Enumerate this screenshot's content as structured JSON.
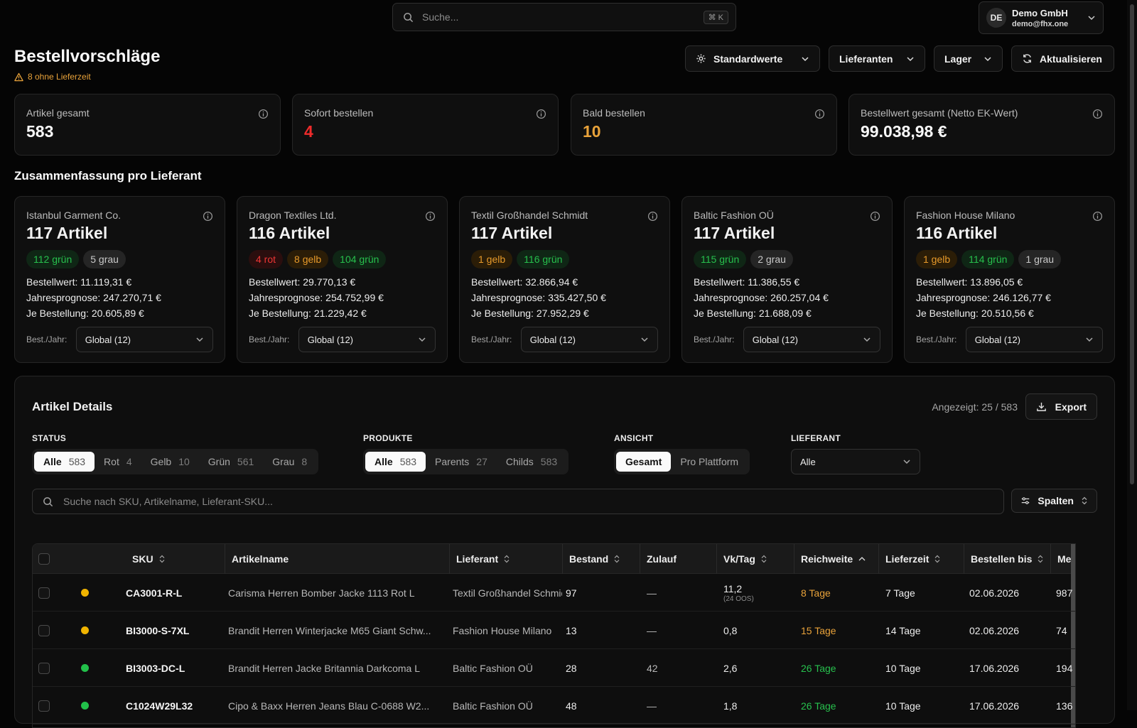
{
  "topbar": {
    "search_placeholder": "Suche...",
    "shortcut": "⌘ K",
    "user_initials": "DE",
    "user_name": "Demo GmbH",
    "user_email": "demo@fhx.one"
  },
  "page": {
    "title": "Bestellvorschläge",
    "warning": "8 ohne Lieferzeit"
  },
  "toolbar": {
    "defaults": "Standardwerte",
    "suppliers": "Lieferanten",
    "warehouse": "Lager",
    "refresh": "Aktualisieren"
  },
  "kpis": [
    {
      "label": "Artikel gesamt",
      "value": "583",
      "color": "#fafafa"
    },
    {
      "label": "Sofort bestellen",
      "value": "4",
      "color": "#ee2b2b"
    },
    {
      "label": "Bald bestellen",
      "value": "10",
      "color": "#e8a23a"
    },
    {
      "label": "Bestellwert gesamt (Netto EK-Wert)",
      "value": "99.038,98 €",
      "color": "#fafafa"
    }
  ],
  "summary_title": "Zusammenfassung pro Lieferant",
  "suppliers": [
    {
      "name": "Istanbul Garment Co.",
      "count": "117 Artikel",
      "pills": [
        {
          "t": "112 grün",
          "c": "gr"
        },
        {
          "t": "5 grau",
          "c": "gy"
        }
      ],
      "order_value": "Bestellwert: 11.119,31 €",
      "forecast": "Jahresprognose: 247.270,71 €",
      "per_order": "Je Bestellung: 20.605,89 €",
      "sel_label": "Best./Jahr:",
      "sel_value": "Global (12)"
    },
    {
      "name": "Dragon Textiles Ltd.",
      "count": "116 Artikel",
      "pills": [
        {
          "t": "4 rot",
          "c": "ro"
        },
        {
          "t": "8 gelb",
          "c": "ge"
        },
        {
          "t": "104 grün",
          "c": "gr"
        }
      ],
      "order_value": "Bestellwert: 29.770,13 €",
      "forecast": "Jahresprognose: 254.752,99 €",
      "per_order": "Je Bestellung: 21.229,42 €",
      "sel_label": "Best./Jahr:",
      "sel_value": "Global (12)"
    },
    {
      "name": "Textil Großhandel Schmidt",
      "count": "117 Artikel",
      "pills": [
        {
          "t": "1 gelb",
          "c": "ge"
        },
        {
          "t": "116 grün",
          "c": "gr"
        }
      ],
      "order_value": "Bestellwert: 32.866,94 €",
      "forecast": "Jahresprognose: 335.427,50 €",
      "per_order": "Je Bestellung: 27.952,29 €",
      "sel_label": "Best./Jahr:",
      "sel_value": "Global (12)"
    },
    {
      "name": "Baltic Fashion OÜ",
      "count": "117 Artikel",
      "pills": [
        {
          "t": "115 grün",
          "c": "gr"
        },
        {
          "t": "2 grau",
          "c": "gy"
        }
      ],
      "order_value": "Bestellwert: 11.386,55 €",
      "forecast": "Jahresprognose: 260.257,04 €",
      "per_order": "Je Bestellung: 21.688,09 €",
      "sel_label": "Best./Jahr:",
      "sel_value": "Global (12)"
    },
    {
      "name": "Fashion House Milano",
      "count": "116 Artikel",
      "pills": [
        {
          "t": "1 gelb",
          "c": "ge"
        },
        {
          "t": "114 grün",
          "c": "gr"
        },
        {
          "t": "1 grau",
          "c": "gy"
        }
      ],
      "order_value": "Bestellwert: 13.896,05 €",
      "forecast": "Jahresprognose: 246.126,77 €",
      "per_order": "Je Bestellung: 20.510,56 €",
      "sel_label": "Best./Jahr:",
      "sel_value": "Global (12)"
    }
  ],
  "details": {
    "title": "Artikel Details",
    "shown": "Angezeigt: 25 / 583",
    "export": "Export",
    "status_label": "STATUS",
    "status": [
      {
        "l": "Alle",
        "c": "583"
      },
      {
        "l": "Rot",
        "c": "4"
      },
      {
        "l": "Gelb",
        "c": "10"
      },
      {
        "l": "Grün",
        "c": "561"
      },
      {
        "l": "Grau",
        "c": "8"
      }
    ],
    "products_label": "PRODUKTE",
    "products": [
      {
        "l": "Alle",
        "c": "583"
      },
      {
        "l": "Parents",
        "c": "27"
      },
      {
        "l": "Childs",
        "c": "583"
      }
    ],
    "view_label": "ANSICHT",
    "view": [
      {
        "l": "Gesamt",
        "c": ""
      },
      {
        "l": "Pro Plattform",
        "c": ""
      }
    ],
    "supplier_label": "LIEFERANT",
    "supplier_value": "Alle",
    "search_placeholder": "Suche nach SKU, Artikelname, Lieferant-SKU...",
    "columns_btn": "Spalten"
  },
  "table": {
    "headers": [
      "SKU",
      "Artikelname",
      "Lieferant",
      "Bestand",
      "Zulauf",
      "Vk/Tag",
      "Reichweite",
      "Lieferzeit",
      "Bestellen bis",
      "Men"
    ],
    "rows": [
      {
        "status": "#f0b400",
        "sku": "CA3001-R-L",
        "name": "Carisma Herren Bomber Jacke 1113 Rot L",
        "supplier": "Textil Großhandel Schmidt",
        "stock": "97",
        "inflow": "—",
        "sales": "11,2",
        "sales_sub": "(24 OOS)",
        "reach": "8 Tage",
        "reach_color": "#e8a23a",
        "lead": "7 Tage",
        "order_by": "02.06.2026",
        "qty": "987"
      },
      {
        "status": "#f0b400",
        "sku": "BI3000-S-7XL",
        "name": "Brandit Herren Winterjacke M65 Giant Schw...",
        "supplier": "Fashion House Milano",
        "stock": "13",
        "inflow": "—",
        "sales": "0,8",
        "sales_sub": "",
        "reach": "15 Tage",
        "reach_color": "#e8a23a",
        "lead": "14 Tage",
        "order_by": "02.06.2026",
        "qty": "74"
      },
      {
        "status": "#22c04a",
        "sku": "BI3003-DC-L",
        "name": "Brandit Herren Jacke Britannia Darkcoma L",
        "supplier": "Baltic Fashion OÜ",
        "stock": "28",
        "inflow": "42",
        "sales": "2,6",
        "sales_sub": "",
        "reach": "26 Tage",
        "reach_color": "#27c04d",
        "lead": "10 Tage",
        "order_by": "17.06.2026",
        "qty": "194"
      },
      {
        "status": "#22c04a",
        "sku": "C1024W29L32",
        "name": "Cipo & Baxx Herren Jeans Blau C-0688 W2...",
        "supplier": "Baltic Fashion OÜ",
        "stock": "48",
        "inflow": "—",
        "sales": "1,8",
        "sales_sub": "",
        "reach": "26 Tage",
        "reach_color": "#27c04d",
        "lead": "10 Tage",
        "order_by": "17.06.2026",
        "qty": "136"
      }
    ]
  }
}
